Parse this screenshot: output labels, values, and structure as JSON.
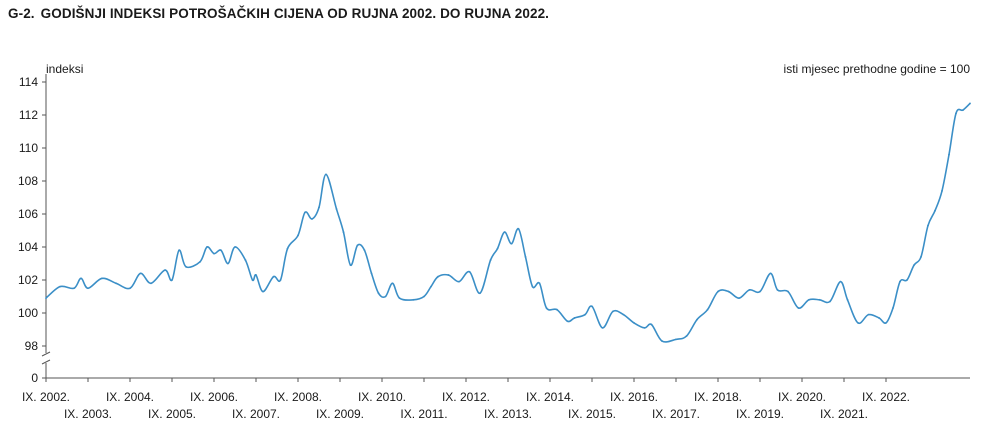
{
  "figure": {
    "number": "G-2.",
    "title": "GODIŠNJI INDEKSI POTROŠAČKIH CIJENA OD RUJNA 2002. DO RUJNA 2022."
  },
  "chart_data": {
    "type": "line",
    "ylabel": "indeksi",
    "note": "isti mjesec prethodne godine = 100",
    "y_ticks": [
      0,
      98,
      100,
      102,
      104,
      106,
      108,
      110,
      112,
      114
    ],
    "ylim": [
      98,
      114
    ],
    "axis_break": true,
    "grid": false,
    "x_tick_labels": [
      "IX. 2002.",
      "IX. 2003.",
      "IX. 2004.",
      "IX. 2005.",
      "IX. 2006.",
      "IX. 2007.",
      "IX. 2008.",
      "IX. 2009.",
      "IX. 2010.",
      "IX. 2011.",
      "IX. 2012.",
      "IX. 2013.",
      "IX. 2014.",
      "IX. 2015.",
      "IX. 2016.",
      "IX. 2017.",
      "IX. 2018.",
      "IX. 2019.",
      "IX. 2020.",
      "IX. 2021.",
      "IX. 2022."
    ],
    "series": [
      {
        "color": "#3b8fc7",
        "points": [
          [
            "IX. 2002.",
            100.9
          ],
          [
            "I. 2003.",
            101.6
          ],
          [
            "V. 2003.",
            101.5
          ],
          [
            "VII. 2003.",
            102.1
          ],
          [
            "IX. 2003.",
            101.5
          ],
          [
            "I. 2004.",
            102.1
          ],
          [
            "V. 2004.",
            101.8
          ],
          [
            "IX. 2004.",
            101.5
          ],
          [
            "XII. 2004.",
            102.4
          ],
          [
            "III. 2005.",
            101.8
          ],
          [
            "VII. 2005.",
            102.6
          ],
          [
            "IX. 2005.",
            102.0
          ],
          [
            "XI. 2005.",
            103.8
          ],
          [
            "I. 2006.",
            102.8
          ],
          [
            "V. 2006.",
            103.1
          ],
          [
            "VII. 2006.",
            104.0
          ],
          [
            "IX. 2006.",
            103.6
          ],
          [
            "XI. 2006.",
            103.8
          ],
          [
            "I. 2007.",
            103.0
          ],
          [
            "III. 2007.",
            104.0
          ],
          [
            "VI. 2007.",
            103.2
          ],
          [
            "VIII. 2007.",
            102.0
          ],
          [
            "IX. 2007.",
            102.3
          ],
          [
            "XI. 2007.",
            101.3
          ],
          [
            "II. 2008.",
            102.2
          ],
          [
            "IV. 2008.",
            102.0
          ],
          [
            "VI. 2008.",
            103.9
          ],
          [
            "IX. 2008.",
            104.7
          ],
          [
            "XI. 2008.",
            106.1
          ],
          [
            "I. 2009.",
            105.7
          ],
          [
            "III. 2009.",
            106.4
          ],
          [
            "V. 2009.",
            108.4
          ],
          [
            "VIII. 2009.",
            106.3
          ],
          [
            "X. 2009.",
            104.9
          ],
          [
            "XII. 2009.",
            102.9
          ],
          [
            "II. 2010.",
            104.1
          ],
          [
            "IV. 2010.",
            103.8
          ],
          [
            "VI. 2010.",
            102.4
          ],
          [
            "VIII. 2010.",
            101.2
          ],
          [
            "X. 2010.",
            101.0
          ],
          [
            "XII. 2010.",
            101.8
          ],
          [
            "II. 2011.",
            100.9
          ],
          [
            "VI. 2011.",
            100.8
          ],
          [
            "IX. 2011.",
            101.0
          ],
          [
            "XI. 2011.",
            101.6
          ],
          [
            "I. 2012.",
            102.2
          ],
          [
            "IV. 2012.",
            102.3
          ],
          [
            "VII. 2012.",
            101.9
          ],
          [
            "X. 2012.",
            102.5
          ],
          [
            "I. 2013.",
            101.2
          ],
          [
            "IV. 2013.",
            103.2
          ],
          [
            "VI. 2013.",
            103.9
          ],
          [
            "VIII. 2013.",
            104.9
          ],
          [
            "X. 2013.",
            104.2
          ],
          [
            "XII. 2013.",
            105.1
          ],
          [
            "II. 2014.",
            103.4
          ],
          [
            "IV. 2014.",
            101.6
          ],
          [
            "VI. 2014.",
            101.8
          ],
          [
            "VIII. 2014.",
            100.3
          ],
          [
            "XI. 2014.",
            100.2
          ],
          [
            "II. 2015.",
            99.5
          ],
          [
            "IV. 2015.",
            99.7
          ],
          [
            "VII. 2015.",
            99.9
          ],
          [
            "IX. 2015.",
            100.4
          ],
          [
            "XII. 2015.",
            99.1
          ],
          [
            "III. 2016.",
            100.1
          ],
          [
            "VI. 2016.",
            99.9
          ],
          [
            "IX. 2016.",
            99.4
          ],
          [
            "XII. 2016.",
            99.1
          ],
          [
            "II. 2017.",
            99.3
          ],
          [
            "V. 2017.",
            98.3
          ],
          [
            "IX. 2017.",
            98.4
          ],
          [
            "XII. 2017.",
            98.6
          ],
          [
            "III. 2018.",
            99.6
          ],
          [
            "VI. 2018.",
            100.2
          ],
          [
            "IX. 2018.",
            101.3
          ],
          [
            "XII. 2018.",
            101.3
          ],
          [
            "III. 2019.",
            100.9
          ],
          [
            "VI. 2019.",
            101.4
          ],
          [
            "IX. 2019.",
            101.3
          ],
          [
            "XII. 2019.",
            102.4
          ],
          [
            "II. 2020.",
            101.4
          ],
          [
            "V. 2020.",
            101.3
          ],
          [
            "VIII. 2020.",
            100.3
          ],
          [
            "XI. 2020.",
            100.8
          ],
          [
            "II. 2021.",
            100.8
          ],
          [
            "V. 2021.",
            100.7
          ],
          [
            "VIII. 2021.",
            101.9
          ],
          [
            "X. 2021.",
            100.8
          ],
          [
            "I. 2022.",
            99.4
          ],
          [
            "IV. 2022.",
            99.9
          ],
          [
            "VII. 2022.",
            99.7
          ],
          [
            "IX. 2022.",
            99.4
          ],
          [
            "XI. 2022.",
            100.3
          ],
          [
            "I. 2023.",
            101.9
          ],
          [
            "III. 2023.",
            102.0
          ],
          [
            "V. 2023.",
            102.9
          ],
          [
            "VII. 2023.",
            103.4
          ],
          [
            "IX. 2023.",
            105.3
          ],
          [
            "XI. 2023.",
            106.2
          ],
          [
            "I. 2024.",
            107.4
          ],
          [
            "III. 2024.",
            109.6
          ],
          [
            "V. 2024.",
            112.1
          ],
          [
            "VII. 2024.",
            112.3
          ],
          [
            "IX. 2024.",
            112.7
          ]
        ]
      }
    ]
  }
}
